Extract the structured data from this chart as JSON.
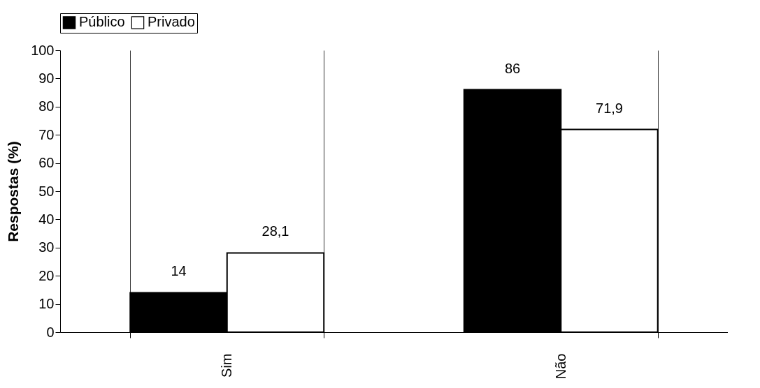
{
  "chart_data": {
    "type": "bar",
    "ylabel": "Respostas (%)",
    "categories": [
      "Sim",
      "Não"
    ],
    "series": [
      {
        "name": "Público",
        "color": "#000000",
        "values": [
          14,
          86
        ],
        "value_labels": [
          "14",
          "86"
        ]
      },
      {
        "name": "Privado",
        "color": "#ffffff",
        "values": [
          28.1,
          71.9
        ],
        "value_labels": [
          "28,1",
          "71,9"
        ]
      }
    ],
    "ylim": [
      0,
      100
    ],
    "yticks": [
      0,
      10,
      20,
      30,
      40,
      50,
      60,
      70,
      80,
      90,
      100
    ],
    "grid": "x",
    "legend": "top"
  }
}
